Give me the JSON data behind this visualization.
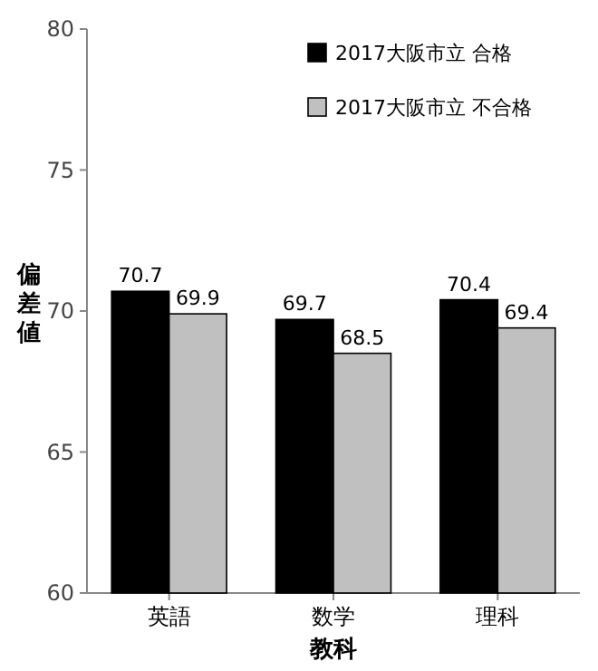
{
  "chart_data": {
    "type": "bar",
    "xlabel": "教科",
    "ylabel": "偏差値",
    "categories": [
      "英語",
      "数学",
      "理科"
    ],
    "series": [
      {
        "name": "2017大阪市立 合格",
        "color": "#000000",
        "values": [
          70.7,
          69.7,
          70.4
        ]
      },
      {
        "name": "2017大阪市立 不合格",
        "color": "#c0c0c0",
        "values": [
          69.9,
          68.5,
          69.4
        ]
      }
    ],
    "ylim": [
      60,
      80
    ],
    "yticks": [
      60,
      65,
      70,
      75,
      80
    ],
    "grid": false,
    "legend": "top right",
    "data_labels": true
  }
}
